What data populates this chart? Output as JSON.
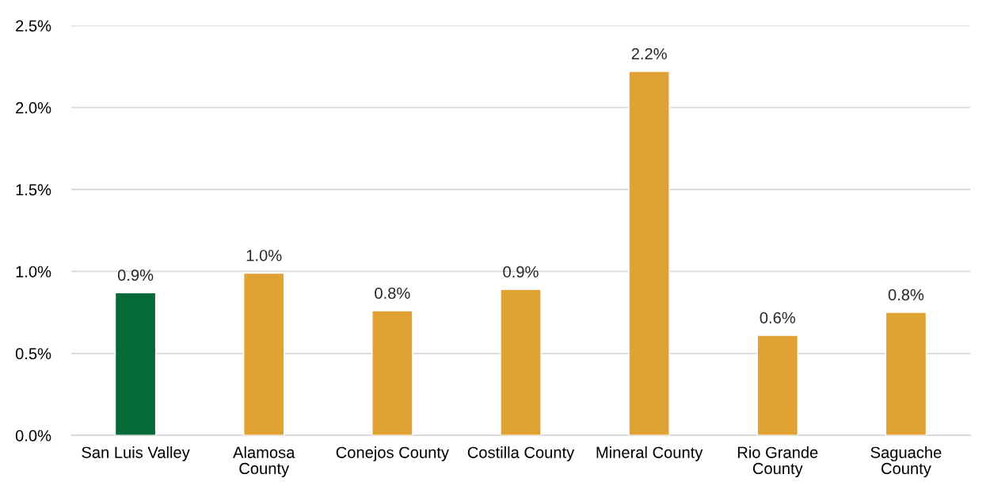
{
  "chart_data": {
    "type": "bar",
    "categories": [
      "San Luis Valley",
      "Alamosa\nCounty",
      "Conejos County",
      "Costilla County",
      "Mineral County",
      "Rio Grande\nCounty",
      "Saguache\nCounty"
    ],
    "values": [
      0.87,
      0.99,
      0.76,
      0.89,
      2.22,
      0.61,
      0.75
    ],
    "colors": [
      "#046a38",
      "#e0a333",
      "#e0a333",
      "#e0a333",
      "#e0a333",
      "#e0a333",
      "#e0a333"
    ],
    "value_labels": [
      "0.9%",
      "1.0%",
      "0.8%",
      "0.9%",
      "2.2%",
      "0.6%",
      "0.8%"
    ],
    "ylim": [
      0,
      2.5
    ],
    "yticks": [
      {
        "value": 0,
        "label": "0.0%"
      },
      {
        "value": 0.5,
        "label": "0.5%"
      },
      {
        "value": 1.0,
        "label": "1.0%"
      },
      {
        "value": 1.5,
        "label": "1.5%"
      },
      {
        "value": 2.0,
        "label": "2.0%"
      },
      {
        "value": 2.5,
        "label": "2.5%"
      }
    ],
    "grid": "y",
    "legend": false
  }
}
